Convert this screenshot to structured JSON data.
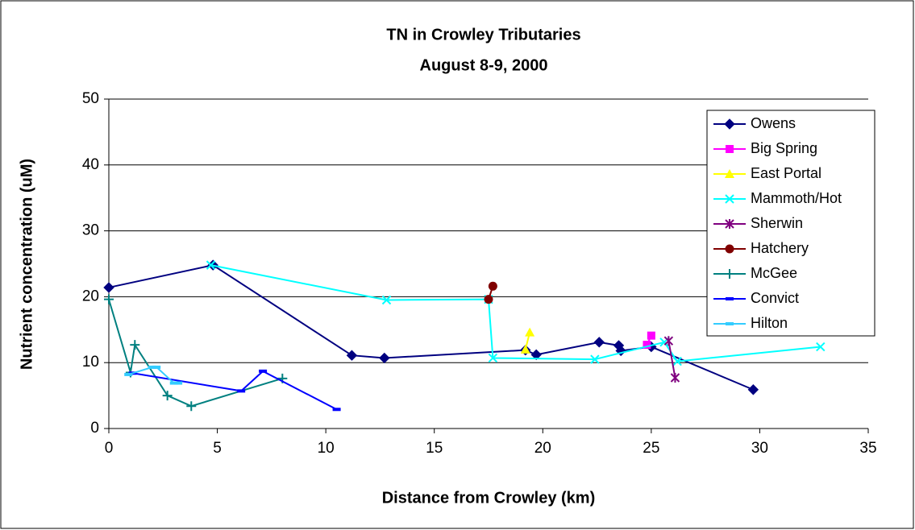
{
  "chart_data": {
    "type": "line",
    "title": [
      "TN in Crowley Tributaries",
      "August 8-9, 2000"
    ],
    "x_label": "Distance from Crowley (km)",
    "y_label": "Nutrient concentration (uM)",
    "xlim": [
      0,
      35
    ],
    "xticks": [
      0,
      5,
      10,
      15,
      20,
      25,
      30,
      35
    ],
    "ylim": [
      0,
      50
    ],
    "yticks": [
      0,
      10,
      20,
      30,
      40,
      50
    ],
    "grid": true,
    "legend": "upper right",
    "series": [
      {
        "name": "Owens",
        "color": "#000080",
        "marker": "diamond",
        "x": [
          0,
          4.8,
          11.2,
          12.7,
          19.2,
          19.7,
          22.6,
          23.5,
          23.6,
          25,
          29.7
        ],
        "values": [
          21.4,
          24.8,
          11.1,
          10.7,
          11.9,
          11.2,
          13.1,
          12.6,
          11.8,
          12.4,
          5.9
        ]
      },
      {
        "name": "Big Spring",
        "color": "#FF00FF",
        "marker": "square",
        "x": [
          24.8,
          25
        ],
        "values": [
          12.7,
          14.1
        ]
      },
      {
        "name": "East Portal",
        "color": "#FFFF00",
        "marker": "triangle",
        "x": [
          19.2,
          19.4
        ],
        "values": [
          12,
          14.6
        ]
      },
      {
        "name": "Mammoth/Hot",
        "color": "#00FFFF",
        "marker": "x",
        "x": [
          4.7,
          12.8,
          17.5,
          17.7,
          22.4,
          25.6,
          26.2,
          32.8
        ],
        "values": [
          24.8,
          19.5,
          19.6,
          10.7,
          10.5,
          13.1,
          10.2,
          12.4
        ]
      },
      {
        "name": "Sherwin",
        "color": "#800080",
        "marker": "star",
        "x": [
          25.8,
          26.1
        ],
        "values": [
          13.3,
          7.7
        ]
      },
      {
        "name": "Hatchery",
        "color": "#800000",
        "marker": "circle",
        "x": [
          17.5,
          17.7
        ],
        "values": [
          19.6,
          21.6
        ]
      },
      {
        "name": "McGee",
        "color": "#008080",
        "marker": "plus",
        "x": [
          0,
          1.0,
          1.2,
          2.7,
          3.8,
          8
        ],
        "values": [
          19.6,
          8.5,
          12.7,
          5,
          3.4,
          7.6
        ]
      },
      {
        "name": "Convict",
        "color": "#0000FF",
        "marker": "dash",
        "x": [
          1.1,
          6.1,
          7.1,
          10.5
        ],
        "values": [
          8.4,
          5.7,
          8.7,
          2.9
        ]
      },
      {
        "name": "Hilton",
        "color": "#33CCFF",
        "marker": "dash",
        "x": [
          0.9,
          2.0,
          2.2,
          3.0,
          3.2
        ],
        "values": [
          8.2,
          9.3,
          9.3,
          6.9,
          6.9
        ]
      }
    ]
  }
}
